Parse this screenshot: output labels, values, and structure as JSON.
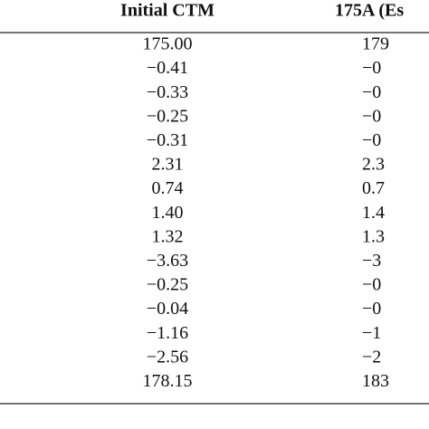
{
  "table": {
    "headers": [
      "Initial CTM",
      "175A (Es"
    ],
    "rows": [
      [
        "175.00",
        "179"
      ],
      [
        "−0.41",
        "−0"
      ],
      [
        "−0.33",
        "−0"
      ],
      [
        "−0.25",
        "−0"
      ],
      [
        "−0.31",
        "−0"
      ],
      [
        "2.31",
        "2.3"
      ],
      [
        "0.74",
        "0.7"
      ],
      [
        "1.40",
        "1.4"
      ],
      [
        "1.32",
        "1.3"
      ],
      [
        "−3.63",
        "−3"
      ],
      [
        "−0.25",
        "−0"
      ],
      [
        "−0.04",
        "−0"
      ],
      [
        "−1.16",
        "−1"
      ],
      [
        "−2.56",
        "−2"
      ],
      [
        "178.15",
        "183"
      ]
    ]
  }
}
